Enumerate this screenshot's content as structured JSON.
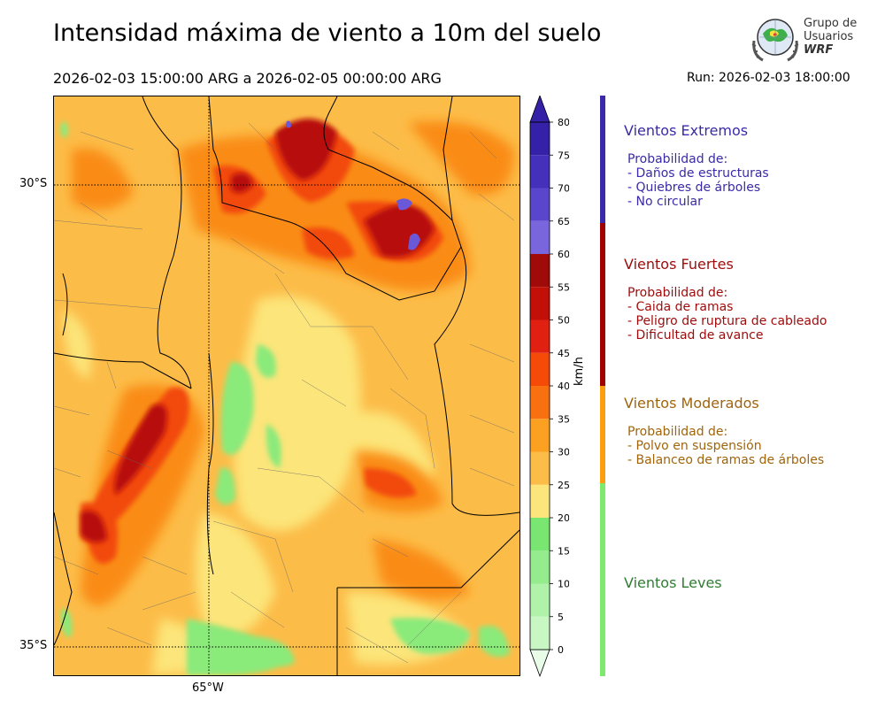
{
  "header": {
    "title": "Intensidad máxima de viento a 10m del suelo",
    "date_range": "2026-02-03 15:00:00 ARG  a  2026-02-05 00:00:00 ARG",
    "run": "Run: 2026-02-03 18:00:00"
  },
  "logo": {
    "line1": "Grupo de",
    "line2": "Usuarios",
    "line3": "WRF"
  },
  "map": {
    "lat_labels": [
      "30°S",
      "35°S"
    ],
    "lon_labels": [
      "65°W"
    ]
  },
  "colorbar": {
    "unit": "km/h",
    "ticks": [
      "0",
      "5",
      "10",
      "15",
      "20",
      "25",
      "30",
      "35",
      "40",
      "45",
      "50",
      "55",
      "60",
      "65",
      "70",
      "75",
      "80"
    ],
    "colors": [
      "#e8fce8",
      "#c8f7c4",
      "#b0f2aa",
      "#94ec8c",
      "#78e670",
      "#fce57a",
      "#fcbc48",
      "#fba020",
      "#f87010",
      "#f64a08",
      "#e02010",
      "#c21008",
      "#a00a08",
      "#7a66dc",
      "#5a46cc",
      "#4530bc",
      "#3520a8"
    ]
  },
  "categories": [
    {
      "title": "Vientos Extremos",
      "color": "#3a2aa8",
      "lines": [
        "Probabilidad de:",
        "- Daños de estructuras",
        "- Quiebres de árboles",
        "- No circular"
      ]
    },
    {
      "title": "Vientos Fuertes",
      "color": "#9e0b0b",
      "lines": [
        "Probabilidad de:",
        "- Caida de ramas",
        "- Peligro de ruptura de cableado",
        "- Dificultad de avance"
      ]
    },
    {
      "title": "Vientos Moderados",
      "color": "#a0650a",
      "lines": [
        "Probabilidad de:",
        "- Polvo en suspensión",
        "- Balanceo de ramas de árboles"
      ]
    },
    {
      "title": "Vientos Leves",
      "color": "#2e7d32",
      "lines": []
    }
  ],
  "category_bar_colors": [
    "#3a2aa8",
    "#a00000",
    "#fb9e10",
    "#7dea6e"
  ]
}
